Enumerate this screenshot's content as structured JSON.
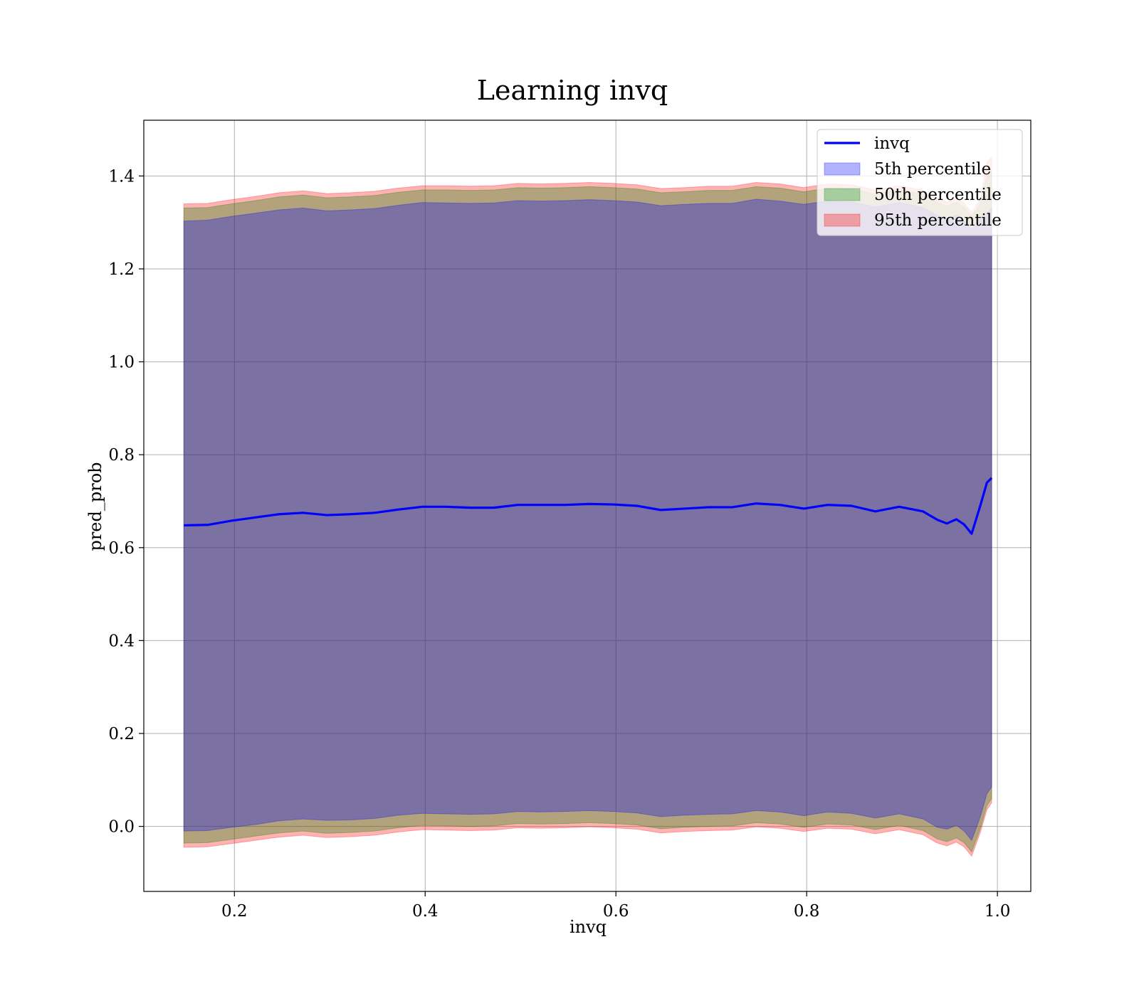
{
  "chart_data": {
    "type": "line",
    "title": "Learning invq",
    "xlabel": "invq",
    "ylabel": "pred_prob",
    "xlim": [
      0.105,
      1.035
    ],
    "ylim": [
      -0.14,
      1.52
    ],
    "xticks": [
      0.2,
      0.4,
      0.6,
      0.8,
      1.0
    ],
    "xtick_labels": [
      "0.2",
      "0.4",
      "0.6",
      "0.8",
      "1.0"
    ],
    "yticks": [
      0.0,
      0.2,
      0.4,
      0.6,
      0.8,
      1.0,
      1.2,
      1.4
    ],
    "ytick_labels": [
      "0.0",
      "0.2",
      "0.4",
      "0.6",
      "0.8",
      "1.0",
      "1.2",
      "1.4"
    ],
    "grid": true,
    "legend_position": "top-right",
    "colors": {
      "line": "#0000ff",
      "band_5th": "#0000ff",
      "band_50th": "#008000",
      "band_95th": "#ff0000"
    },
    "x": [
      0.147,
      0.172,
      0.197,
      0.222,
      0.247,
      0.272,
      0.297,
      0.322,
      0.347,
      0.372,
      0.397,
      0.422,
      0.447,
      0.472,
      0.497,
      0.522,
      0.547,
      0.572,
      0.597,
      0.622,
      0.647,
      0.672,
      0.697,
      0.722,
      0.747,
      0.772,
      0.797,
      0.822,
      0.847,
      0.872,
      0.897,
      0.922,
      0.937,
      0.947,
      0.957,
      0.965,
      0.973,
      0.982,
      0.989,
      0.994
    ],
    "series": [
      {
        "name": "invq",
        "kind": "line",
        "values": [
          0.648,
          0.649,
          0.658,
          0.665,
          0.672,
          0.675,
          0.67,
          0.672,
          0.675,
          0.682,
          0.688,
          0.688,
          0.686,
          0.686,
          0.692,
          0.692,
          0.692,
          0.694,
          0.693,
          0.69,
          0.681,
          0.684,
          0.687,
          0.687,
          0.695,
          0.692,
          0.684,
          0.692,
          0.69,
          0.678,
          0.688,
          0.678,
          0.66,
          0.652,
          0.661,
          0.65,
          0.63,
          0.69,
          0.74,
          0.75
        ]
      },
      {
        "name": "5th percentile",
        "kind": "band",
        "lower": [
          -0.01,
          -0.009,
          -0.002,
          0.004,
          0.012,
          0.016,
          0.013,
          0.014,
          0.017,
          0.024,
          0.028,
          0.027,
          0.026,
          0.027,
          0.032,
          0.031,
          0.032,
          0.034,
          0.032,
          0.029,
          0.021,
          0.024,
          0.026,
          0.027,
          0.034,
          0.031,
          0.023,
          0.031,
          0.028,
          0.018,
          0.027,
          0.016,
          -0.002,
          -0.006,
          0.002,
          -0.01,
          -0.03,
          0.02,
          0.07,
          0.085
        ],
        "upper": [
          1.303,
          1.305,
          1.313,
          1.32,
          1.327,
          1.331,
          1.325,
          1.327,
          1.33,
          1.337,
          1.343,
          1.342,
          1.341,
          1.342,
          1.347,
          1.346,
          1.347,
          1.349,
          1.347,
          1.344,
          1.336,
          1.339,
          1.341,
          1.341,
          1.35,
          1.346,
          1.339,
          1.346,
          1.344,
          1.333,
          1.343,
          1.332,
          1.315,
          1.307,
          1.316,
          1.305,
          1.285,
          1.31,
          1.32,
          1.33
        ]
      },
      {
        "name": "50th percentile",
        "kind": "band",
        "lower": [
          -0.036,
          -0.035,
          -0.028,
          -0.021,
          -0.014,
          -0.01,
          -0.015,
          -0.013,
          -0.01,
          -0.003,
          0.002,
          0.001,
          0.0,
          0.001,
          0.006,
          0.005,
          0.006,
          0.008,
          0.006,
          0.003,
          -0.005,
          -0.002,
          0.0,
          0.001,
          0.008,
          0.005,
          -0.002,
          0.005,
          0.003,
          -0.007,
          0.002,
          -0.009,
          -0.027,
          -0.033,
          -0.025,
          -0.035,
          -0.055,
          -0.005,
          0.045,
          0.06
        ],
        "upper": [
          1.331,
          1.332,
          1.34,
          1.347,
          1.355,
          1.359,
          1.353,
          1.355,
          1.358,
          1.365,
          1.37,
          1.37,
          1.369,
          1.37,
          1.375,
          1.374,
          1.375,
          1.377,
          1.375,
          1.372,
          1.364,
          1.366,
          1.369,
          1.369,
          1.377,
          1.374,
          1.366,
          1.374,
          1.372,
          1.361,
          1.37,
          1.36,
          1.343,
          1.335,
          1.344,
          1.333,
          1.313,
          1.34,
          1.4,
          1.41
        ]
      },
      {
        "name": "95th percentile",
        "kind": "band",
        "lower": [
          -0.045,
          -0.044,
          -0.037,
          -0.03,
          -0.023,
          -0.019,
          -0.024,
          -0.022,
          -0.019,
          -0.012,
          -0.007,
          -0.008,
          -0.009,
          -0.008,
          -0.003,
          -0.004,
          -0.003,
          -0.001,
          -0.003,
          -0.006,
          -0.014,
          -0.011,
          -0.009,
          -0.008,
          -0.001,
          -0.004,
          -0.011,
          -0.004,
          -0.006,
          -0.016,
          -0.007,
          -0.018,
          -0.036,
          -0.042,
          -0.034,
          -0.044,
          -0.064,
          -0.014,
          0.036,
          0.051
        ],
        "upper": [
          1.34,
          1.341,
          1.349,
          1.356,
          1.364,
          1.368,
          1.362,
          1.364,
          1.367,
          1.374,
          1.379,
          1.379,
          1.378,
          1.379,
          1.384,
          1.383,
          1.384,
          1.386,
          1.384,
          1.381,
          1.373,
          1.375,
          1.378,
          1.378,
          1.386,
          1.383,
          1.375,
          1.383,
          1.381,
          1.37,
          1.379,
          1.369,
          1.352,
          1.344,
          1.353,
          1.342,
          1.322,
          1.35,
          1.43,
          1.44
        ]
      }
    ]
  }
}
